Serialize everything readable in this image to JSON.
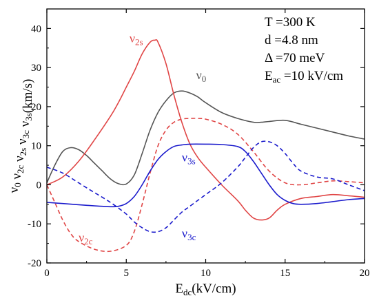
{
  "chart_data": {
    "type": "line",
    "xlabel": {
      "main": "E",
      "sub": "dc",
      "rest": "(kV/cm)"
    },
    "ylabel_parts": [
      {
        "main": "ν",
        "sub": "0"
      },
      {
        "main": " ν",
        "sub": "2c"
      },
      {
        "main": " ν",
        "sub": "2s"
      },
      {
        "main": " ν",
        "sub": "3c"
      },
      {
        "main": " ν",
        "sub": "3s"
      },
      {
        "main": "(km/s)",
        "sub": ""
      }
    ],
    "xlim": [
      0,
      20
    ],
    "ylim": [
      -20,
      45
    ],
    "xticks": [
      0,
      5,
      10,
      15,
      20
    ],
    "yticks": [
      -20,
      -10,
      0,
      10,
      20,
      30,
      40
    ],
    "params": [
      {
        "main": "T =300 K",
        "sub": "",
        "rest": ""
      },
      {
        "main": "d =4.8 nm",
        "sub": "",
        "rest": ""
      },
      {
        "main": "Δ =70 meV",
        "sub": "",
        "rest": ""
      },
      {
        "main": "E",
        "sub": "ac",
        "rest": " =10 kV/cm"
      }
    ],
    "series": [
      {
        "name": "ν0",
        "label_main": "ν",
        "label_sub": "0",
        "color": "#555555",
        "dash": "solid",
        "x": [
          0,
          0.5,
          1,
          1.5,
          2,
          2.5,
          3,
          3.5,
          4,
          4.5,
          5,
          5.5,
          6,
          6.5,
          7,
          7.5,
          8,
          8.5,
          9,
          9.5,
          10,
          11,
          12,
          13,
          13.5,
          14,
          15,
          16,
          17,
          18,
          19,
          20
        ],
        "y": [
          0.5,
          5,
          8.5,
          9.5,
          9,
          7.5,
          5.5,
          3.5,
          1.5,
          0.3,
          0.2,
          2.5,
          8,
          14,
          18.5,
          21.5,
          23.5,
          24,
          23.5,
          22.5,
          21,
          18.5,
          17,
          16,
          16,
          16.2,
          16.5,
          15.5,
          14.5,
          13.5,
          12.5,
          11.7
        ],
        "label_pos": [
          9.4,
          27
        ]
      },
      {
        "name": "ν2s",
        "label_main": "ν",
        "label_sub": "2s",
        "color": "#e04545",
        "dash": "solid",
        "x": [
          0,
          1,
          2,
          3,
          4,
          4.5,
          5,
          5.5,
          6,
          6.5,
          6.8,
          7,
          7.5,
          8,
          8.5,
          9,
          9.5,
          10,
          11,
          12,
          12.5,
          13,
          13.5,
          14,
          14.5,
          15,
          16,
          17,
          18,
          19,
          20
        ],
        "y": [
          0,
          2,
          6,
          11.5,
          17.5,
          21,
          25,
          29,
          33.5,
          36.5,
          37,
          36.5,
          31,
          23,
          16,
          10.5,
          7,
          4.5,
          0,
          -4,
          -6.5,
          -8.5,
          -9,
          -8.5,
          -6.5,
          -5,
          -3.5,
          -3,
          -2.5,
          -2.8,
          -3.2
        ],
        "label_pos": [
          5.2,
          36.5
        ]
      },
      {
        "name": "ν2c",
        "label_main": "ν",
        "label_sub": "2c",
        "color": "#e04545",
        "dash": "dashed",
        "x": [
          0,
          0.5,
          1,
          1.5,
          2,
          3,
          4,
          5,
          5.5,
          6,
          6.5,
          7,
          7.5,
          8,
          8.5,
          9,
          9.5,
          10,
          11,
          12,
          13,
          14,
          15,
          16,
          17,
          18,
          19,
          20
        ],
        "y": [
          0,
          -4.5,
          -9,
          -12.5,
          -14.5,
          -16.5,
          -17,
          -15.5,
          -12,
          -5,
          3,
          10,
          14,
          16,
          16.8,
          17,
          17,
          16.8,
          15.5,
          13,
          8.5,
          3.5,
          0.5,
          0,
          0.5,
          1,
          0.8,
          0.5
        ],
        "label_pos": [
          2.0,
          -14.5
        ]
      },
      {
        "name": "ν3s",
        "label_main": "ν",
        "label_sub": "3s",
        "color": "#1a1acc",
        "dash": "solid",
        "x": [
          0,
          1,
          2,
          3,
          4,
          4.5,
          5,
          5.5,
          6,
          6.5,
          7,
          7.5,
          8,
          8.5,
          9,
          10,
          11,
          12,
          12.5,
          13,
          13.5,
          14,
          14.5,
          15,
          15.5,
          16,
          17,
          18,
          19,
          20
        ],
        "y": [
          -4.5,
          -4.8,
          -5.1,
          -5.4,
          -5.6,
          -5.5,
          -4.8,
          -3,
          0,
          3.5,
          6.5,
          8.5,
          9.8,
          10.2,
          10.4,
          10.4,
          10.3,
          9.8,
          8.5,
          6,
          3,
          0,
          -2.5,
          -4,
          -4.8,
          -5,
          -4.8,
          -4.3,
          -3.8,
          -3.5
        ],
        "label_pos": [
          8.5,
          6
        ]
      },
      {
        "name": "ν3c",
        "label_main": "ν",
        "label_sub": "3c",
        "color": "#1a1acc",
        "dash": "dashed",
        "x": [
          0,
          1,
          2,
          3,
          4,
          5,
          5.5,
          6,
          6.5,
          7,
          7.5,
          8,
          8.5,
          9,
          10,
          11,
          12,
          12.5,
          13,
          13.5,
          14,
          14.5,
          15,
          15.5,
          16,
          17,
          18,
          19,
          20
        ],
        "y": [
          4.5,
          3,
          0.5,
          -2,
          -4.5,
          -7.5,
          -9.5,
          -11,
          -12,
          -12,
          -11,
          -9,
          -7,
          -5.5,
          -2.5,
          0.5,
          4.5,
          7,
          9.5,
          11,
          11,
          10,
          8,
          5.5,
          3.5,
          2,
          1.5,
          0,
          -1.5
        ],
        "label_pos": [
          8.5,
          -13.5
        ]
      }
    ]
  }
}
